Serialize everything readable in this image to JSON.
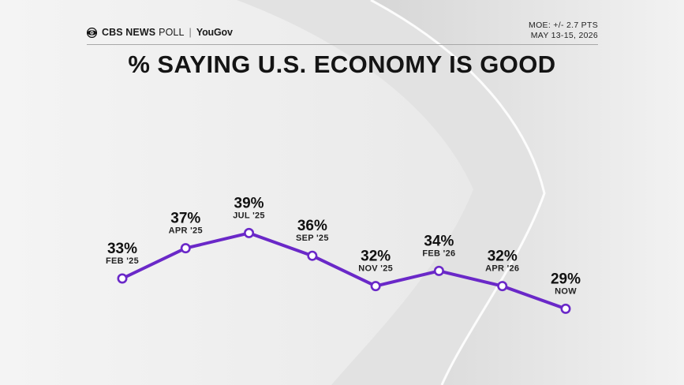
{
  "header": {
    "network": "CBS NEWS",
    "poll": "POLL",
    "separator": "|",
    "partner": "YouGov",
    "moe": "MOE: +/- 2.7 PTS",
    "dates": "MAY 13-15, 2026"
  },
  "colors": {
    "line": "#6a28c8",
    "marker_fill": "#ffffff",
    "text": "#111111"
  },
  "chart_data": {
    "type": "line",
    "title": "% SAYING U.S. ECONOMY IS GOOD",
    "categories": [
      "FEB '25",
      "APR '25",
      "JUL '25",
      "SEP '25",
      "NOV '25",
      "FEB '26",
      "APR '26",
      "NOW"
    ],
    "values": [
      33,
      37,
      39,
      36,
      32,
      34,
      32,
      29
    ],
    "value_labels": [
      "33%",
      "37%",
      "39%",
      "36%",
      "32%",
      "34%",
      "32%",
      "29%"
    ],
    "xlabel": "",
    "ylabel": "",
    "grid": false,
    "legend": "none"
  }
}
